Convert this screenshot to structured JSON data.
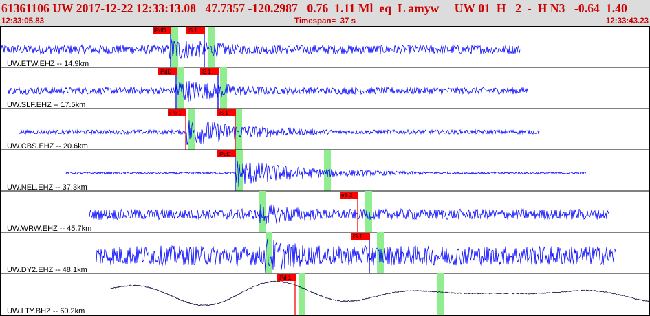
{
  "header": {
    "title": "61361106 UW 2017-12-22 12:33:13.08   47.7357 -120.2987   0.76  1.11 Ml  eq  L amyw     UW 01  H   2  -  H N3   -0.64  1.40",
    "start_time": "12:33:05.83",
    "timespan": "Timespan=  37 s",
    "end_time": "12:33:43.23"
  },
  "traces": [
    {
      "label": "UW.ETW.EHZ -- 14.9km",
      "start": 0,
      "end": 756,
      "amp": 0.25,
      "onset": 247,
      "spike": 0.55,
      "picks": [
        {
          "text": "iPdD",
          "x": 222,
          "color": "blue"
        },
        {
          "text": "iS 1",
          "x": 271,
          "color": "blue"
        }
      ],
      "windows": [
        249,
        302
      ]
    },
    {
      "label": "UW.SLF.EHZ -- 17.5km",
      "start": 12,
      "end": 768,
      "amp": 0.2,
      "onset": 256,
      "spike": 0.6,
      "picks": [
        {
          "text": "iPdD",
          "x": 230,
          "color": "blue"
        },
        {
          "text": "iS 1",
          "x": 291,
          "color": "blue"
        }
      ],
      "windows": [
        258,
        320
      ]
    },
    {
      "label": "UW.CBS.EHZ -- 20.6km",
      "start": 28,
      "end": 784,
      "amp": 0.12,
      "onset": 272,
      "spike": 0.7,
      "picks": [
        {
          "text": "iPc 1",
          "x": 244,
          "color": "red"
        },
        {
          "text": "iS 1",
          "x": 316,
          "color": "red"
        }
      ],
      "windows": [
        274,
        342
      ]
    },
    {
      "label": "UW.NEL.EHZ -- 37.3km",
      "start": 96,
      "end": 852,
      "amp": 0.06,
      "onset": 342,
      "spike": 0.7,
      "picks": [
        {
          "text": "iPdD",
          "x": 316,
          "color": "blue"
        }
      ],
      "windows": [
        343,
        471
      ]
    },
    {
      "label": "UW.WRW.EHZ -- 45.7km",
      "start": 130,
      "end": 886,
      "amp": 0.3,
      "onset": 378,
      "spike": 0.5,
      "picks": [
        {
          "text": "eS 2",
          "x": 494,
          "color": "red"
        }
      ],
      "windows": [
        377,
        531
      ]
    },
    {
      "label": "UW.DY2.EHZ -- 48.1km",
      "start": 140,
      "end": 896,
      "amp": 0.55,
      "onset": 386,
      "spike": 0.9,
      "picks": [
        {
          "text": "iS 1",
          "x": 511,
          "color": "blue"
        }
      ],
      "windows": [
        386,
        548
      ]
    },
    {
      "label": "UW.LTY.BHZ -- 60.2km",
      "start": 160,
      "end": 945,
      "amp": 0.35,
      "onset": 432,
      "spike": 0,
      "picks": [
        {
          "text": "iPd 1",
          "x": 403,
          "color": "red"
        }
      ],
      "windows": [
        434,
        636
      ]
    }
  ],
  "colors": {
    "trace": "#0000ff",
    "lowfreq_trace": "#000033",
    "pick_box": "#ff0000",
    "window": "#90ee90",
    "title": "#cc0000",
    "header_bg": "#dcdcdc"
  }
}
